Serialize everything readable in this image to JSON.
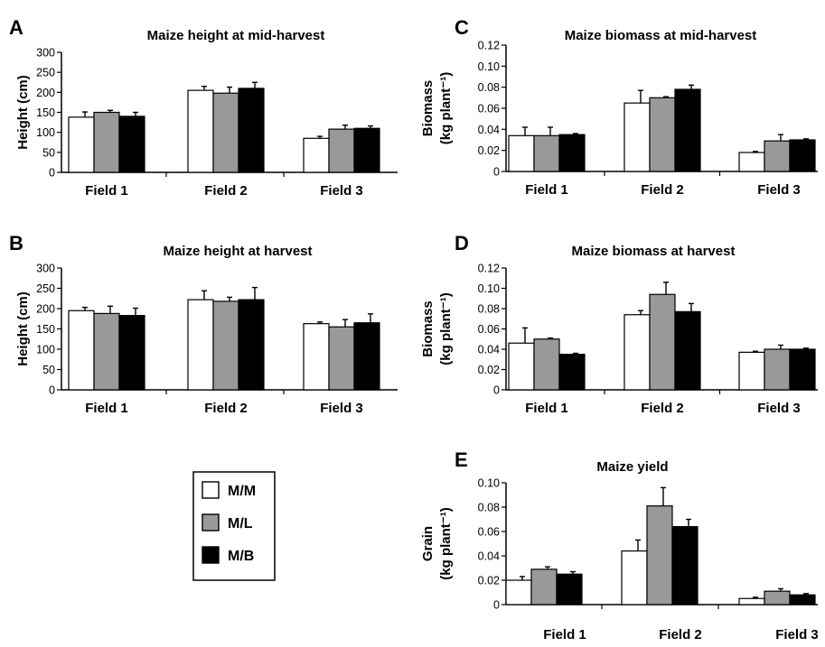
{
  "legend": {
    "entries": [
      {
        "label": "M/M",
        "color": "#ffffff"
      },
      {
        "label": "M/L",
        "color": "#999999"
      },
      {
        "label": "M/B",
        "color": "#000000"
      }
    ]
  },
  "chart_data": [
    {
      "panel": "A",
      "type": "bar",
      "title": "Maize height at mid-harvest",
      "ylabel": [
        "Height (cm)"
      ],
      "ylim": [
        0,
        300
      ],
      "yticks": [
        "0",
        "50",
        "100",
        "150",
        "200",
        "250",
        "300"
      ],
      "categories": [
        "Field 1",
        "Field 2",
        "Field 3"
      ],
      "series": [
        {
          "name": "M/M",
          "values": [
            138,
            205,
            85
          ],
          "errors": [
            13,
            10,
            5
          ]
        },
        {
          "name": "M/L",
          "values": [
            150,
            198,
            108
          ],
          "errors": [
            5,
            15,
            10
          ]
        },
        {
          "name": "M/B",
          "values": [
            140,
            210,
            110
          ],
          "errors": [
            10,
            15,
            6
          ]
        }
      ]
    },
    {
      "panel": "B",
      "type": "bar",
      "title": "Maize height at harvest",
      "ylabel": [
        "Height (cm)"
      ],
      "ylim": [
        0,
        300
      ],
      "yticks": [
        "0",
        "50",
        "100",
        "150",
        "200",
        "250",
        "300"
      ],
      "categories": [
        "Field 1",
        "Field 2",
        "Field 3"
      ],
      "series": [
        {
          "name": "M/M",
          "values": [
            195,
            222,
            163
          ],
          "errors": [
            8,
            22,
            4
          ]
        },
        {
          "name": "M/L",
          "values": [
            188,
            218,
            155
          ],
          "errors": [
            18,
            10,
            18
          ]
        },
        {
          "name": "M/B",
          "values": [
            183,
            222,
            165
          ],
          "errors": [
            18,
            30,
            22
          ]
        }
      ]
    },
    {
      "panel": "C",
      "type": "bar",
      "title": "Maize biomass at mid-harvest",
      "ylabel": [
        "Biomass",
        "(kg plant⁻¹)"
      ],
      "ylim": [
        0,
        0.12
      ],
      "yticks": [
        "0",
        "0.02",
        "0.04",
        "0.06",
        "0.08",
        "0.10",
        "0.12"
      ],
      "categories": [
        "Field 1",
        "Field 2",
        "Field 3"
      ],
      "series": [
        {
          "name": "M/M",
          "values": [
            0.034,
            0.065,
            0.018
          ],
          "errors": [
            0.008,
            0.012,
            0.001
          ]
        },
        {
          "name": "M/L",
          "values": [
            0.034,
            0.07,
            0.029
          ],
          "errors": [
            0.008,
            0.001,
            0.006
          ]
        },
        {
          "name": "M/B",
          "values": [
            0.035,
            0.078,
            0.03
          ],
          "errors": [
            0.001,
            0.004,
            0.001
          ]
        }
      ]
    },
    {
      "panel": "D",
      "type": "bar",
      "title": "Maize biomass at harvest",
      "ylabel": [
        "Biomass",
        "(kg plant⁻¹)"
      ],
      "ylim": [
        0,
        0.12
      ],
      "yticks": [
        "0",
        "0.02",
        "0.04",
        "0.06",
        "0.08",
        "0.10",
        "0.12"
      ],
      "categories": [
        "Field 1",
        "Field 2",
        "Field 3"
      ],
      "series": [
        {
          "name": "M/M",
          "values": [
            0.046,
            0.074,
            0.037
          ],
          "errors": [
            0.015,
            0.004,
            0.001
          ]
        },
        {
          "name": "M/L",
          "values": [
            0.05,
            0.094,
            0.04
          ],
          "errors": [
            0.001,
            0.012,
            0.004
          ]
        },
        {
          "name": "M/B",
          "values": [
            0.035,
            0.077,
            0.04
          ],
          "errors": [
            0.001,
            0.008,
            0.001
          ]
        }
      ]
    },
    {
      "panel": "E",
      "type": "bar",
      "title": "Maize yield",
      "ylabel": [
        "Grain",
        "(kg plant⁻¹)"
      ],
      "ylim": [
        0,
        0.1
      ],
      "yticks": [
        "0",
        "0.02",
        "0.04",
        "0.06",
        "0.08",
        "0.10"
      ],
      "categories": [
        "Field 1",
        "Field 2",
        "Field 3"
      ],
      "series": [
        {
          "name": "M/M",
          "values": [
            0.02,
            0.044,
            0.005
          ],
          "errors": [
            0.003,
            0.009,
            0.001
          ]
        },
        {
          "name": "M/L",
          "values": [
            0.029,
            0.081,
            0.011
          ],
          "errors": [
            0.002,
            0.015,
            0.002
          ]
        },
        {
          "name": "M/B",
          "values": [
            0.025,
            0.064,
            0.008
          ],
          "errors": [
            0.002,
            0.006,
            0.001
          ]
        }
      ]
    }
  ]
}
